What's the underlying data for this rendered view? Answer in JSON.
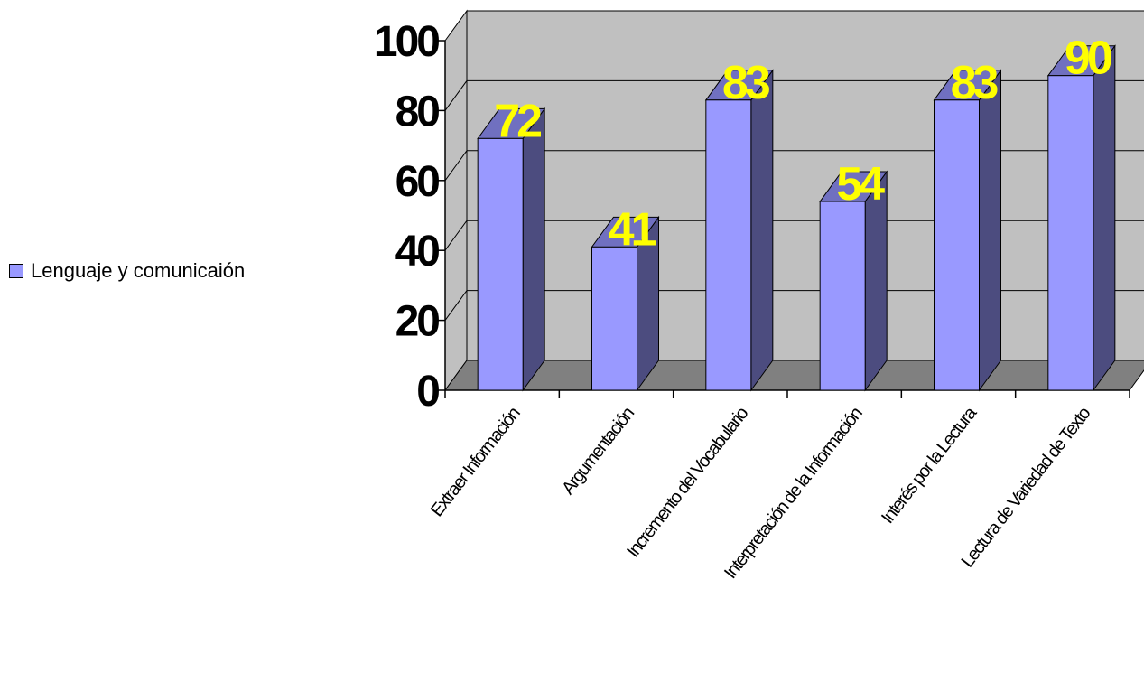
{
  "chart_data": {
    "type": "bar",
    "categories": [
      "Extraer Información",
      "Argumentación",
      "Incremento del Vocabulario",
      "Interpretación de la Información",
      "Interés por la Lectura",
      "Lectura de Variedad de Texto"
    ],
    "series": [
      {
        "name": "Lenguaje y comunicaión",
        "values": [
          72,
          41,
          83,
          54,
          83,
          90
        ]
      }
    ],
    "data_labels": [
      "72",
      "41",
      "83",
      "54",
      "83",
      "90"
    ],
    "yticks": [
      "0",
      "20",
      "40",
      "60",
      "80",
      "100"
    ],
    "ylim": [
      0,
      100
    ],
    "title": "",
    "xlabel": "",
    "ylabel": "",
    "grid": true,
    "legend_position": "left",
    "three_d": true,
    "colors": {
      "bar_front": "#9999ff",
      "bar_side": "#4c4c7f",
      "bar_top": "#7070c0",
      "wall": "#c0c0c0",
      "floor": "#808080",
      "data_label": "#ffff00"
    }
  }
}
